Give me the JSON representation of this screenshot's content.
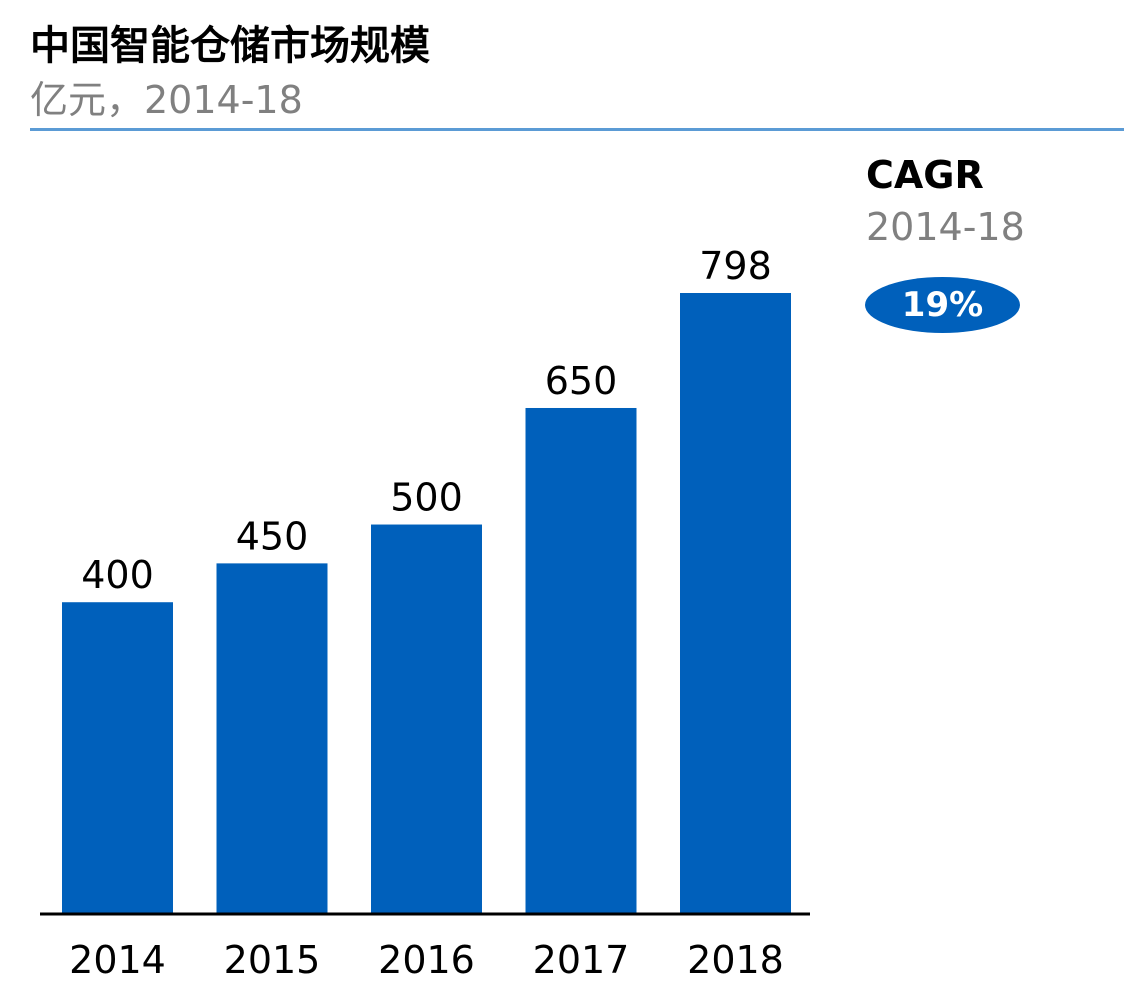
{
  "chart_data": {
    "type": "bar",
    "title": "中国智能仓储市场规模",
    "subtitle": "亿元，2014-18",
    "categories": [
      "2014",
      "2015",
      "2016",
      "2017",
      "2018"
    ],
    "values": [
      400,
      450,
      500,
      650,
      798
    ],
    "xlabel": "",
    "ylabel": "",
    "ylim": [
      0,
      798
    ],
    "grid": false,
    "legend": "none"
  },
  "cagr": {
    "title": "CAGR",
    "period": "2014-18",
    "value": "19%"
  },
  "colors": {
    "bar": "#0060bb",
    "rule": "#5b9bd5",
    "muted_text": "#808080"
  }
}
